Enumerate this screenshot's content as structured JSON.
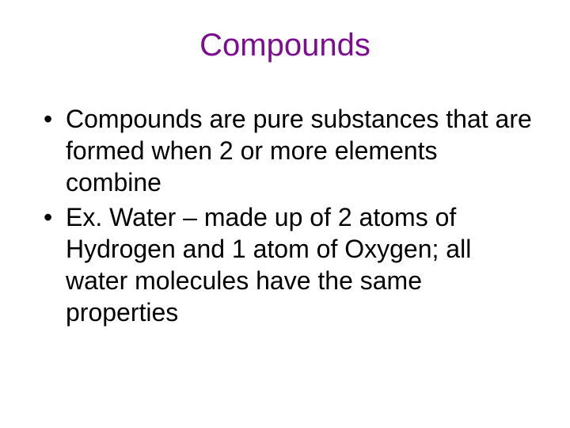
{
  "title": {
    "text": "Compounds",
    "color": "#7a0e8f",
    "fontsize": 40
  },
  "bullets": [
    {
      "text": "Compounds are pure substances that are formed when 2 or more elements combine",
      "color": "#000000",
      "fontsize": 32
    },
    {
      "text": "Ex. Water – made up of 2 atoms of Hydrogen and 1 atom of Oxygen; all water molecules have the same properties",
      "color": "#000000",
      "fontsize": 32
    }
  ],
  "background_color": "#ffffff"
}
